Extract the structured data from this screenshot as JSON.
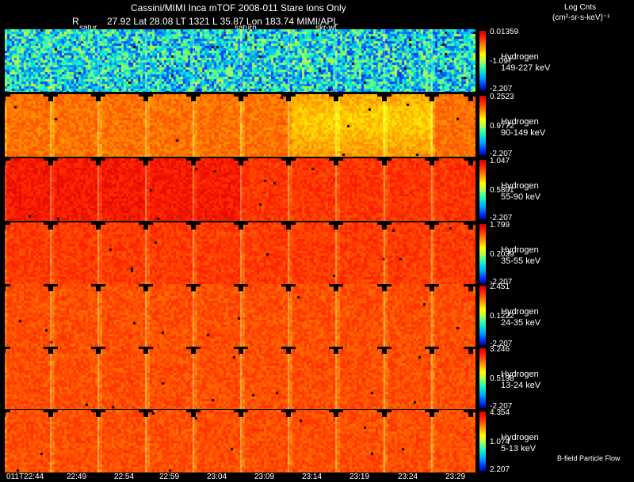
{
  "header": {
    "title_line1": "Cassini/MIMI Inca mTOF  2008-011   Stare   Ions Only",
    "r_label": "R",
    "position_line": "27.92 Lat 28.08 LT 1321 L      35.87 Lon        183.74  MIMI/APL",
    "marker_saturn_1": "satur",
    "marker_saturn_2": "saturn",
    "marker_skrwt": "skr-wt",
    "units_line1": "Log Cnts",
    "units_line2": "(cm²-sr-s-keV)⁻¹"
  },
  "footer": {
    "bfield_label": "B-field Particle Flow",
    "x_ticks": [
      "011T22:44",
      "22:49",
      "22:54",
      "22:59",
      "23:04",
      "23:09",
      "23:14",
      "23:19",
      "23:24",
      "23:29"
    ]
  },
  "chart_data": {
    "type": "heatmap",
    "x_ticks": [
      "011T22:44",
      "22:49",
      "22:54",
      "22:59",
      "23:04",
      "23:09",
      "23:14",
      "23:19",
      "23:24",
      "23:29"
    ],
    "colormap": [
      "#0000b0",
      "#0040ff",
      "#00a0ff",
      "#00e0e0",
      "#40ffa0",
      "#c0ff40",
      "#ffff00",
      "#ffb000",
      "#ff6000",
      "#ff2000",
      "#d00000"
    ],
    "panels": [
      {
        "species": "Hydrogen",
        "energy": "149-227 keV",
        "max": "0.01359",
        "mid": "-1.097",
        "min": "-2.207",
        "level": 0.3,
        "bg": "#30ffd0"
      },
      {
        "species": "Hydrogen",
        "energy": "90-149 keV",
        "max": "0.2523",
        "mid": "0.9772",
        "min": "-2.207",
        "level": 0.78,
        "bg": "#ff5000"
      },
      {
        "species": "Hydrogen",
        "energy": "55-90 keV",
        "max": "1.047",
        "mid": "0.5801",
        "min": "-2.207",
        "level": 0.92,
        "bg": "#e01000"
      },
      {
        "species": "Hydrogen",
        "energy": "35-55 keV",
        "max": "1.799",
        "mid": "0.2039",
        "min": "-2.207",
        "level": 0.86,
        "bg": "#ff2800"
      },
      {
        "species": "Hydrogen",
        "energy": "24-35 keV",
        "max": "2.451",
        "mid": "0.1222",
        "min": "-2.207",
        "level": 0.83,
        "bg": "#ff4000"
      },
      {
        "species": "Hydrogen",
        "energy": "13-24 keV",
        "max": "3.246",
        "mid": "0.5198",
        "min": "-2.207",
        "level": 0.83,
        "bg": "#ff4000"
      },
      {
        "species": "Hydrogen",
        "energy": "5-13 keV",
        "max": "4.354",
        "mid": "1.074",
        "min": "2.207",
        "level": 0.83,
        "bg": "#ff3c00"
      }
    ]
  }
}
